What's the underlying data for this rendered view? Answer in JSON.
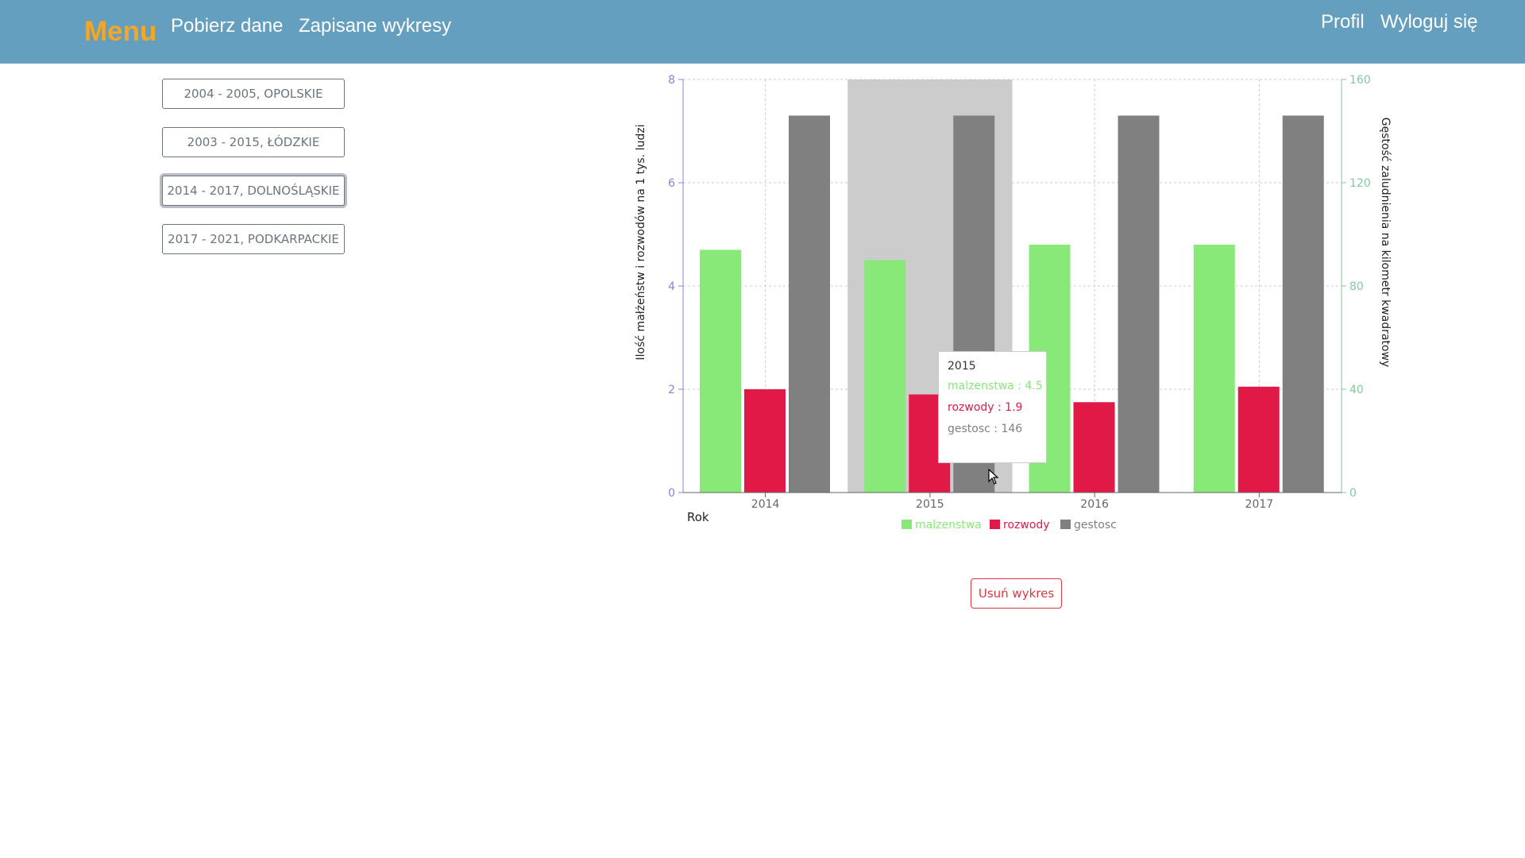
{
  "nav": {
    "brand": "Menu",
    "download_label": "Pobierz dane",
    "saved_charts_label": "Zapisane wykresy",
    "profile_label": "Profil",
    "logout_label": "Wyloguj się"
  },
  "saved_charts": [
    {
      "label": "2004 - 2005, OPOLSKIE",
      "active": false
    },
    {
      "label": "2003 - 2015, ŁÓDZKIE",
      "active": false
    },
    {
      "label": "2014 - 2017, DOLNOŚLĄSKIE",
      "active": true
    },
    {
      "label": "2017 - 2021, PODKARPACKIE",
      "active": false
    }
  ],
  "chart_data": {
    "type": "bar",
    "categories": [
      "2014",
      "2015",
      "2016",
      "2017"
    ],
    "series": [
      {
        "name": "malzenstwa",
        "values": [
          4.7,
          4.5,
          4.8,
          4.8
        ],
        "color": "#88e878",
        "axis": "left"
      },
      {
        "name": "rozwody",
        "values": [
          2.0,
          1.9,
          1.75,
          2.05
        ],
        "color": "#e01946",
        "axis": "left"
      },
      {
        "name": "gestosc",
        "values": [
          146,
          146,
          146,
          146
        ],
        "color": "#808080",
        "axis": "right"
      }
    ],
    "xlabel": "Rok",
    "ylabel": "Ilość małżeństw i rozwodów na 1 tys. ludzi",
    "ylabel_right": "Gęstość zaludnienia na kilometr kwadratowy",
    "ylim": [
      0,
      8
    ],
    "yticks": [
      "0",
      "2",
      "4",
      "6",
      "8"
    ],
    "ylim_right": [
      0,
      160
    ],
    "yticks_right": [
      "0",
      "40",
      "80",
      "120",
      "160"
    ],
    "left_axis_color": "#8884d8",
    "right_axis_color": "#82ca9d",
    "grid": true,
    "legend_position": "bottom-center",
    "highlighted_category": "2015"
  },
  "tooltip": {
    "title": "2015",
    "lines": [
      "malzenstwa : 4.5",
      "rozwody : 1.9",
      "gestosc : 146"
    ]
  },
  "remove_button_label": "Usuń wykres"
}
